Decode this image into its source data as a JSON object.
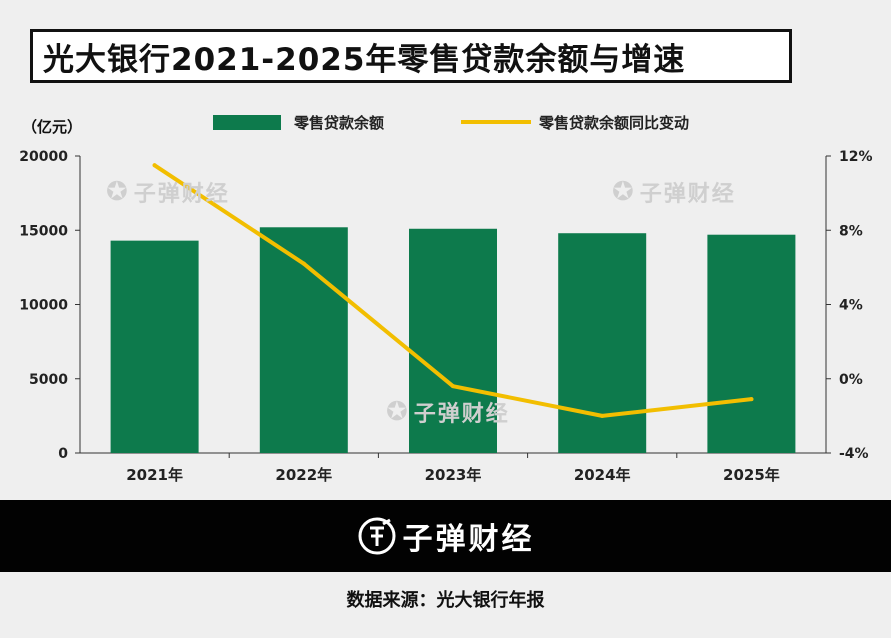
{
  "title": "光大银行2021-2025年零售贷款余额与增速",
  "unit_left": "（亿元）",
  "watermark_text": "子弹财经",
  "footer": {
    "brand": "子弹财经"
  },
  "source": "数据来源：光大银行年报",
  "colors": {
    "bar": "#0d7a4c",
    "line": "#f2be00",
    "axis": "#333333"
  },
  "chart_data": {
    "type": "bar",
    "categories": [
      "2021年",
      "2022年",
      "2023年",
      "2024年",
      "2025年"
    ],
    "series": [
      {
        "name": "零售贷款余额",
        "type": "bar",
        "axis": "left",
        "values": [
          14300,
          15200,
          15100,
          14800,
          14700
        ]
      },
      {
        "name": "零售贷款余额同比变动",
        "type": "line",
        "axis": "right",
        "values": [
          11.5,
          6.2,
          -0.4,
          -2.0,
          -1.1
        ]
      }
    ],
    "y_left": {
      "range": [
        0,
        20000
      ],
      "ticks": [
        "0",
        "5000",
        "10000",
        "15000",
        "20000"
      ]
    },
    "y_right": {
      "range": [
        -4,
        12
      ],
      "ticks": [
        "-4%",
        "0%",
        "4%",
        "8%",
        "12%"
      ]
    },
    "legend": "top",
    "grid": false
  }
}
